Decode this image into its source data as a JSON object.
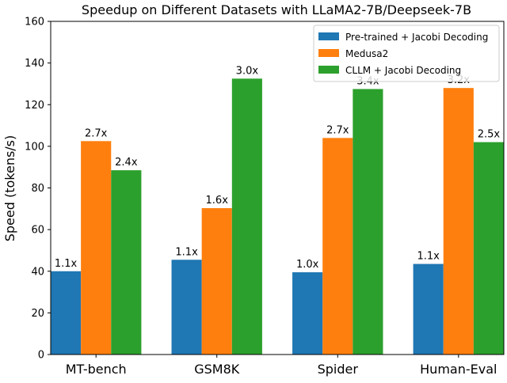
{
  "chart_data": {
    "type": "bar",
    "title": "Speedup on Different Datasets with LLaMA2-7B/Deepseek-7B",
    "xlabel": "",
    "ylabel": "Speed (tokens/s)",
    "ylim": [
      0,
      160
    ],
    "yticks": [
      0,
      20,
      40,
      60,
      80,
      100,
      120,
      140,
      160
    ],
    "categories": [
      "MT-bench",
      "GSM8K",
      "Spider",
      "Human-Eval"
    ],
    "legend_position": "top-right",
    "grid": false,
    "series": [
      {
        "name": "Pre-trained + Jacobi Decoding",
        "color": "#1f77b4",
        "values": [
          40,
          45.5,
          39.5,
          43.5
        ],
        "labels": [
          "1.1x",
          "1.1x",
          "1.0x",
          "1.1x"
        ]
      },
      {
        "name": "Medusa2",
        "color": "#ff7f0e",
        "values": [
          102.5,
          70.3,
          104,
          128
        ],
        "labels": [
          "2.7x",
          "1.6x",
          "2.7x",
          "3.2x"
        ]
      },
      {
        "name": "CLLM + Jacobi Decoding",
        "color": "#2ca02c",
        "values": [
          88.5,
          132.5,
          127.5,
          102
        ],
        "labels": [
          "2.4x",
          "3.0x",
          "3.4x",
          "2.5x"
        ]
      }
    ]
  }
}
